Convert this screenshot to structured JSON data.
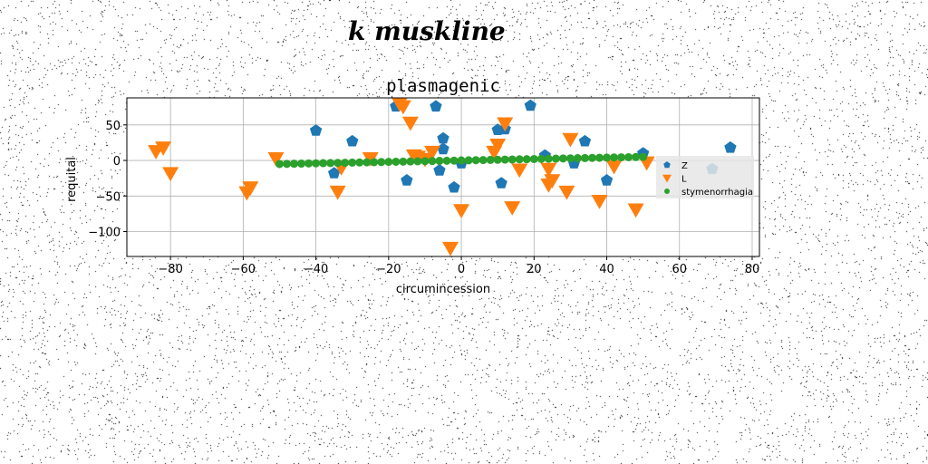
{
  "page_title": "k muskline",
  "chart_data": {
    "type": "scatter",
    "title": "plasmagenic",
    "xlabel": "circumincession",
    "ylabel": "requital",
    "xlim": [
      -92,
      82
    ],
    "ylim": [
      -135,
      88
    ],
    "xticks": [
      -80,
      -60,
      -40,
      -20,
      0,
      20,
      40,
      60,
      80
    ],
    "yticks": [
      50,
      0,
      -50,
      -100
    ],
    "xtick_labels": [
      "−80",
      "−60",
      "−40",
      "−20",
      "0",
      "20",
      "40",
      "60",
      "80"
    ],
    "ytick_labels": [
      "50",
      "0",
      "−50",
      "−100"
    ],
    "grid": true,
    "legend_position": "center-right",
    "series": [
      {
        "name": "Z",
        "marker": "pentagon",
        "color": "#1f77b4",
        "points": [
          [
            -40,
            42
          ],
          [
            -30,
            27
          ],
          [
            -35,
            -18
          ],
          [
            -18,
            76
          ],
          [
            -15,
            -28
          ],
          [
            -7,
            76
          ],
          [
            -5,
            31
          ],
          [
            -5,
            16
          ],
          [
            -6,
            -14
          ],
          [
            -2,
            -38
          ],
          [
            0,
            -4
          ],
          [
            10,
            43
          ],
          [
            11,
            -32
          ],
          [
            12,
            44
          ],
          [
            19,
            77
          ],
          [
            23,
            7
          ],
          [
            31,
            -4
          ],
          [
            34,
            27
          ],
          [
            40,
            -28
          ],
          [
            50,
            10
          ],
          [
            74,
            18
          ],
          [
            69,
            -12
          ]
        ]
      },
      {
        "name": "L",
        "marker": "triangle-down",
        "color": "#ff7f0e",
        "points": [
          [
            -84,
            13
          ],
          [
            -82,
            18
          ],
          [
            -80,
            -18
          ],
          [
            -59,
            -45
          ],
          [
            -58,
            -38
          ],
          [
            -51,
            3
          ],
          [
            -34,
            -44
          ],
          [
            -33,
            -10
          ],
          [
            -25,
            3
          ],
          [
            -17,
            80
          ],
          [
            -16,
            76
          ],
          [
            -14,
            53
          ],
          [
            -13,
            7
          ],
          [
            -12,
            5
          ],
          [
            -10,
            2
          ],
          [
            -8,
            12
          ],
          [
            -3,
            -123
          ],
          [
            0,
            -70
          ],
          [
            9,
            12
          ],
          [
            10,
            22
          ],
          [
            12,
            52
          ],
          [
            14,
            -66
          ],
          [
            16,
            -13
          ],
          [
            24,
            -12
          ],
          [
            24,
            -34
          ],
          [
            25,
            -28
          ],
          [
            29,
            -44
          ],
          [
            30,
            30
          ],
          [
            38,
            -57
          ],
          [
            42,
            -8
          ],
          [
            48,
            -69
          ],
          [
            51,
            -3
          ]
        ]
      },
      {
        "name": "stymenorrhagia",
        "marker": "circle",
        "color": "#2ca02c",
        "x_range": [
          -50,
          50
        ],
        "y_range": [
          -5,
          5
        ],
        "count": 51
      }
    ]
  }
}
